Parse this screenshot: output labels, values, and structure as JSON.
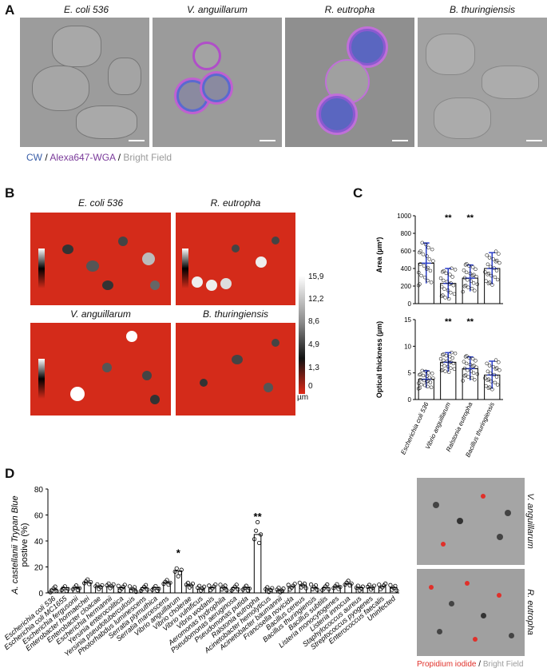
{
  "panelA": {
    "letter": "A",
    "titles": [
      "E. coli 536",
      "V. anguillarum",
      "R. eutropha",
      "B. thuringiensis"
    ],
    "legend": {
      "cw": "CW",
      "sep1": " / ",
      "wga": "Alexa647-WGA",
      "sep2": " / ",
      "bf": "Bright Field",
      "cw_color": "#3a5ea8",
      "wga_color": "#7a3a9a",
      "bf_color": "#9a9a9a"
    }
  },
  "panelB": {
    "letter": "B",
    "titles": [
      "E. coli 536",
      "R. eutropha",
      "V. anguillarum",
      "B. thuringiensis"
    ],
    "colorbar_ticks": [
      "15,9",
      "12,2",
      "8,6",
      "4,9",
      "1,3",
      "0"
    ],
    "colorbar_unit": "µm"
  },
  "panelC": {
    "letter": "C",
    "top": {
      "ylabel": "Area (µm²)",
      "yticks": [
        "0",
        "200",
        "400",
        "600",
        "800",
        "1000"
      ],
      "sig": [
        "**",
        "**"
      ]
    },
    "bottom": {
      "ylabel": "Optical thickness (µm)",
      "yticks": [
        "0",
        "5",
        "10",
        "15"
      ],
      "sig": [
        "**",
        "**"
      ]
    },
    "categories": [
      "Escherichia coli 536",
      "Vibrio anguillarum",
      "Ralstonia eutropha",
      "Bacillus thuringiensis"
    ]
  },
  "panelD": {
    "letter": "D",
    "ylabel_line1": "A. castellanii Trypan Blue",
    "ylabel_line2": "postive (%)",
    "yticks": [
      "0",
      "20",
      "40",
      "60",
      "80"
    ],
    "sig": [
      "*",
      "**"
    ],
    "right_labels": [
      "V. anguillarum",
      "R. eutropha"
    ],
    "legend": {
      "pi": "Propidium iodide",
      "sep": " / ",
      "bf": "Bright Field",
      "pi_color": "#e0302a",
      "bf_color": "#9a9a9a"
    }
  },
  "chart_data": [
    {
      "type": "bar",
      "title": "",
      "ylabel": "Area (µm²)",
      "ylim": [
        0,
        1000
      ],
      "categories": [
        "Escherichia coli 536",
        "Vibrio anguillarum",
        "Ralstonia eutropha",
        "Bacillus thuringiensis"
      ],
      "values": [
        460,
        230,
        290,
        400
      ],
      "errors": [
        230,
        170,
        150,
        180
      ],
      "annotations": [
        "",
        "**",
        "**",
        ""
      ]
    },
    {
      "type": "bar",
      "title": "",
      "ylabel": "Optical thickness (µm)",
      "ylim": [
        0,
        15
      ],
      "categories": [
        "Escherichia coli 536",
        "Vibrio anguillarum",
        "Ralstonia eutropha",
        "Bacillus thuringiensis"
      ],
      "values": [
        3.8,
        7.0,
        5.8,
        4.6
      ],
      "errors": [
        1.6,
        1.8,
        2.2,
        2.6
      ],
      "annotations": [
        "",
        "**",
        "**",
        ""
      ]
    },
    {
      "type": "bar",
      "title": "",
      "ylabel": "A. castellanii Trypan Blue postive (%)",
      "ylim": [
        0,
        80
      ],
      "categories": [
        "Escherichia coli 536",
        "Escherichia coli MC1655",
        "Escherichia fergusonii",
        "Enterobacter hormaechei",
        "Enterobacter cloacae",
        "Escherichia hermannii",
        "Yersinia enterocolitica",
        "Yersinia pseudotuberculosis",
        "Photorhabdus luminescens",
        "Serratia plymuthica",
        "Serratia marcescens",
        "Vibrio anguillarum",
        "Vibrio cholerae",
        "Vibrio vulnificus",
        "Vibrio wodanis",
        "Aeromonas hydrophila",
        "Pseudomonas aeruginosa",
        "Pseudomonas putida",
        "Ralstonia eutropha",
        "Acinetobacter hemolyticus",
        "Acinetobacter baumannii",
        "Francisella novicida",
        "Bacillus cereus",
        "Bacillus thuringiensis",
        "Bacillus subtilis",
        "Listeria monocytogenes",
        "Listeria innocua",
        "Staphylococcus aureus",
        "Streptococcus pyogenes",
        "Enterococcus faecalis",
        "Uninfected"
      ],
      "values": [
        3,
        4,
        4,
        8,
        5,
        5,
        4,
        3,
        4,
        4,
        8,
        17,
        6,
        3,
        4,
        4,
        4,
        4,
        45,
        3,
        2,
        5,
        6,
        4,
        4,
        5,
        7,
        4,
        4,
        5,
        4
      ],
      "annotations": {
        "Vibrio anguillarum": "*",
        "Ralstonia eutropha": "**"
      }
    }
  ]
}
